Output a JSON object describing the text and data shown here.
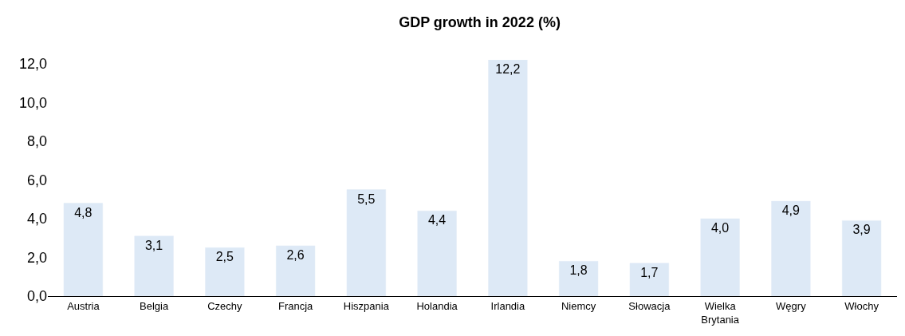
{
  "chart_data": {
    "type": "bar",
    "title": "GDP growth in 2022 (%)",
    "categories": [
      "Austria",
      "Belgia",
      "Czechy",
      "Francja",
      "Hiszpania",
      "Holandia",
      "Irlandia",
      "Niemcy",
      "Słowacja",
      "Wielka Brytania",
      "Węgry",
      "Włochy"
    ],
    "values": [
      4.8,
      3.1,
      2.5,
      2.6,
      5.5,
      4.4,
      12.2,
      1.8,
      1.7,
      4.0,
      4.9,
      3.9
    ],
    "value_labels": [
      "4,8",
      "3,1",
      "2,5",
      "2,6",
      "5,5",
      "4,4",
      "12,2",
      "1,8",
      "1,7",
      "4,0",
      "4,9",
      "3,9"
    ],
    "color": "#dde9f6",
    "ylim": [
      0,
      12.2
    ],
    "yticks": [
      {
        "value": 0,
        "label": "0,0"
      },
      {
        "value": 2,
        "label": "2,0"
      },
      {
        "value": 4,
        "label": "4,0"
      },
      {
        "value": 6,
        "label": "6,0"
      },
      {
        "value": 8,
        "label": "8,0"
      },
      {
        "value": 10,
        "label": "10,0"
      },
      {
        "value": 12,
        "label": "12,0"
      }
    ],
    "legend": false
  }
}
